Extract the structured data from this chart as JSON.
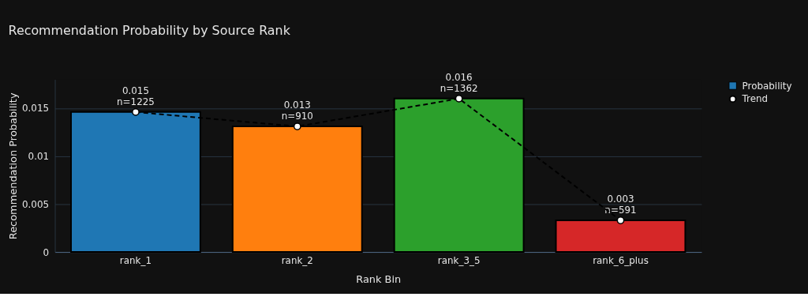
{
  "chart_data": {
    "type": "bar",
    "title": "Recommendation Probability by Source Rank",
    "xlabel": "Rank Bin",
    "ylabel": "Recommendation Probability",
    "categories": [
      "rank_1",
      "rank_2",
      "rank_3_5",
      "rank_6_plus"
    ],
    "series": [
      {
        "name": "Probability",
        "color": "#1f77b4",
        "colors": [
          "#1f77b4",
          "#ff7f0e",
          "#2ca02c",
          "#d62728"
        ],
        "values": [
          0.0146,
          0.0131,
          0.016,
          0.0033
        ],
        "value_labels": [
          "0.015\nn=1225",
          "0.013\nn=910",
          "0.016\nn=1362",
          "0.003\nn=591"
        ]
      },
      {
        "name": "Trend",
        "type": "line",
        "color": "#000000",
        "marker": "circle",
        "line_style": "dashed",
        "values": [
          0.0146,
          0.0131,
          0.016,
          0.0033
        ]
      }
    ],
    "ylim": [
      0,
      0.018
    ],
    "yticks": [
      0,
      0.005,
      0.01,
      0.015
    ],
    "grid": "y",
    "legend": "top right"
  }
}
